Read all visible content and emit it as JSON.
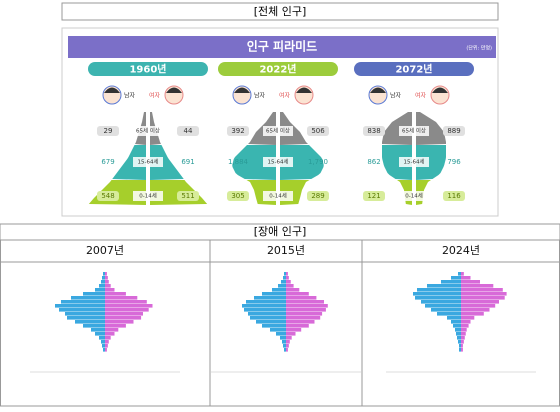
{
  "top": {
    "header": "[전체 인구]",
    "panel_title": "인구 피라미드",
    "unit": "(단위: 만명)",
    "male_label": "남자",
    "female_label": "여자",
    "age_groups": [
      "65세 이상",
      "15-64세",
      "0-14세"
    ],
    "pyramids": [
      {
        "year": "1960년",
        "male": [
          "29",
          "679",
          "548"
        ],
        "female": [
          "44",
          "691",
          "511"
        ]
      },
      {
        "year": "2022년",
        "male": [
          "392",
          "1,884",
          "305"
        ],
        "female": [
          "506",
          "1,790",
          "289"
        ]
      },
      {
        "year": "2072년",
        "male": [
          "838",
          "862",
          "121"
        ],
        "female": [
          "889",
          "796",
          "116"
        ]
      }
    ]
  },
  "bottom": {
    "header": "[장애 인구]",
    "years": [
      "2007년",
      "2015년",
      "2024년"
    ]
  }
}
